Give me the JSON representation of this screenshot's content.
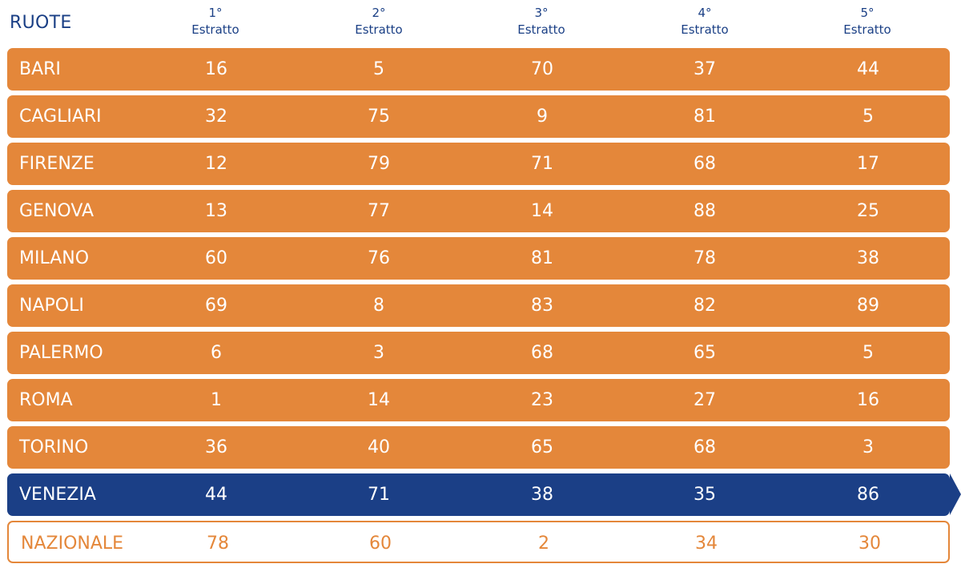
{
  "header": {
    "ruote_label": "RUOTE",
    "columns": [
      {
        "ord": "1°",
        "label": "Estratto"
      },
      {
        "ord": "2°",
        "label": "Estratto"
      },
      {
        "ord": "3°",
        "label": "Estratto"
      },
      {
        "ord": "4°",
        "label": "Estratto"
      },
      {
        "ord": "5°",
        "label": "Estratto"
      }
    ]
  },
  "colors": {
    "orange_row": "#e4873a",
    "highlight_row": "#1b3f86",
    "header_text": "#1a3f85"
  },
  "rows": [
    {
      "city": "BARI",
      "n": [
        "16",
        "5",
        "70",
        "37",
        "44"
      ]
    },
    {
      "city": "CAGLIARI",
      "n": [
        "32",
        "75",
        "9",
        "81",
        "5"
      ]
    },
    {
      "city": "FIRENZE",
      "n": [
        "12",
        "79",
        "71",
        "68",
        "17"
      ]
    },
    {
      "city": "GENOVA",
      "n": [
        "13",
        "77",
        "14",
        "88",
        "25"
      ]
    },
    {
      "city": "MILANO",
      "n": [
        "60",
        "76",
        "81",
        "78",
        "38"
      ]
    },
    {
      "city": "NAPOLI",
      "n": [
        "69",
        "8",
        "83",
        "82",
        "89"
      ]
    },
    {
      "city": "PALERMO",
      "n": [
        "6",
        "3",
        "68",
        "65",
        "5"
      ]
    },
    {
      "city": "ROMA",
      "n": [
        "1",
        "14",
        "23",
        "27",
        "16"
      ]
    },
    {
      "city": "TORINO",
      "n": [
        "36",
        "40",
        "65",
        "68",
        "3"
      ]
    },
    {
      "city": "VENEZIA",
      "n": [
        "44",
        "71",
        "38",
        "35",
        "86"
      ]
    },
    {
      "city": "NAZIONALE",
      "n": [
        "78",
        "60",
        "2",
        "34",
        "30"
      ]
    }
  ]
}
